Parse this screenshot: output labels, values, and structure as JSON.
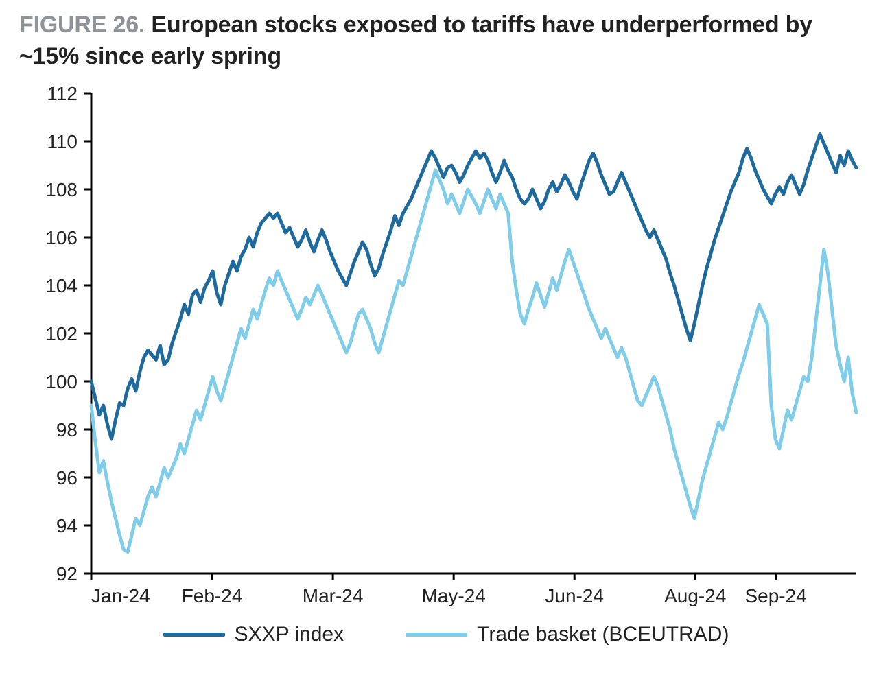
{
  "title": {
    "prefix": "FIGURE 26.",
    "text": "European stocks exposed to tariffs have  underperformed by ~15% since early spring"
  },
  "chart": {
    "type": "line",
    "background_color": "#ffffff",
    "axis_color": "#000000",
    "axis_line_width": 3,
    "series_line_width": 5,
    "tick_length": 10,
    "tick_font_size": 28,
    "legend_font_size": 30,
    "title_font_size": 34,
    "y_axis": {
      "min": 92,
      "max": 112,
      "step": 2,
      "ticks": [
        92,
        94,
        96,
        98,
        100,
        102,
        104,
        106,
        108,
        110,
        112
      ]
    },
    "x_axis": {
      "min": 0,
      "max": 190,
      "tick_positions": [
        0,
        30,
        60,
        90,
        120,
        150,
        170
      ],
      "tick_labels": [
        "Jan-24",
        "Feb-24",
        "Mar-24",
        "May-24",
        "Jun-24",
        "Aug-24",
        "Sep-24"
      ]
    },
    "legend": {
      "items": [
        {
          "label": "SXXP index",
          "color": "#1e6a9c"
        },
        {
          "label": "Trade basket (BCEUTRAD)",
          "color": "#7fcde8"
        }
      ]
    },
    "series": [
      {
        "name": "SXXP index",
        "color": "#1e6a9c",
        "data": [
          100.0,
          99.3,
          98.6,
          99.0,
          98.2,
          97.6,
          98.4,
          99.1,
          99.0,
          99.7,
          100.1,
          99.6,
          100.4,
          101.0,
          101.3,
          101.1,
          100.9,
          101.5,
          100.7,
          100.9,
          101.6,
          102.1,
          102.6,
          103.2,
          102.8,
          103.6,
          103.8,
          103.3,
          103.9,
          104.2,
          104.6,
          103.7,
          103.2,
          104.0,
          104.5,
          105.0,
          104.6,
          105.2,
          105.5,
          106.0,
          105.6,
          106.2,
          106.6,
          106.8,
          107.0,
          106.8,
          107.0,
          106.6,
          106.2,
          106.4,
          106.0,
          105.6,
          105.9,
          106.3,
          105.8,
          105.4,
          105.9,
          106.3,
          105.9,
          105.4,
          105.0,
          104.6,
          104.3,
          104.0,
          104.5,
          105.0,
          105.4,
          105.8,
          105.5,
          104.9,
          104.4,
          104.7,
          105.3,
          105.8,
          106.3,
          106.9,
          106.5,
          107.0,
          107.3,
          107.6,
          108.0,
          108.4,
          108.8,
          109.2,
          109.6,
          109.3,
          108.9,
          108.5,
          108.9,
          109.0,
          108.7,
          108.3,
          108.6,
          109.0,
          109.3,
          109.6,
          109.3,
          109.5,
          109.2,
          108.7,
          108.3,
          108.7,
          109.2,
          108.8,
          108.5,
          108.0,
          107.6,
          107.4,
          107.6,
          108.0,
          107.6,
          107.2,
          107.5,
          108.0,
          108.3,
          107.9,
          108.2,
          108.6,
          108.3,
          107.9,
          107.6,
          108.2,
          108.7,
          109.2,
          109.5,
          109.1,
          108.6,
          108.2,
          107.8,
          107.9,
          108.3,
          108.7,
          108.3,
          107.9,
          107.5,
          107.1,
          106.7,
          106.3,
          106.0,
          106.3,
          105.9,
          105.5,
          105.1,
          104.5,
          104.0,
          103.4,
          102.8,
          102.2,
          101.7,
          102.4,
          103.2,
          104.0,
          104.7,
          105.3,
          105.9,
          106.4,
          106.9,
          107.4,
          107.9,
          108.3,
          108.7,
          109.3,
          109.7,
          109.3,
          108.8,
          108.4,
          108.0,
          107.7,
          107.4,
          107.8,
          108.1,
          107.8,
          108.3,
          108.6,
          108.2,
          107.8,
          108.2,
          108.8,
          109.3,
          109.8,
          110.3,
          109.9,
          109.5,
          109.1,
          108.7,
          109.4,
          109.0,
          109.6,
          109.2,
          108.9
        ]
      },
      {
        "name": "Trade basket (BCEUTRAD)",
        "color": "#7fcde8",
        "data": [
          99.0,
          97.5,
          96.2,
          96.7,
          95.8,
          95.0,
          94.3,
          93.6,
          93.0,
          92.9,
          93.6,
          94.3,
          94.0,
          94.6,
          95.2,
          95.6,
          95.2,
          95.8,
          96.4,
          96.0,
          96.4,
          96.8,
          97.4,
          97.0,
          97.6,
          98.2,
          98.8,
          98.4,
          99.0,
          99.6,
          100.2,
          99.6,
          99.2,
          99.8,
          100.4,
          101.0,
          101.6,
          102.2,
          101.8,
          102.4,
          103.0,
          102.6,
          103.2,
          103.8,
          104.3,
          104.0,
          104.6,
          104.2,
          103.8,
          103.4,
          103.0,
          102.6,
          103.0,
          103.5,
          103.2,
          103.6,
          104.0,
          103.6,
          103.2,
          102.8,
          102.4,
          102.0,
          101.6,
          101.2,
          101.6,
          102.2,
          102.8,
          103.0,
          102.6,
          102.2,
          101.6,
          101.2,
          101.8,
          102.4,
          103.0,
          103.6,
          104.2,
          104.0,
          104.6,
          105.2,
          105.8,
          106.4,
          107.0,
          107.6,
          108.2,
          108.8,
          108.4,
          108.0,
          107.4,
          107.8,
          107.4,
          107.0,
          107.5,
          108.0,
          107.7,
          107.4,
          107.0,
          107.5,
          108.0,
          107.6,
          107.2,
          107.8,
          107.4,
          107.0,
          105.0,
          103.8,
          102.8,
          102.4,
          103.0,
          103.5,
          104.1,
          103.6,
          103.1,
          103.7,
          104.3,
          103.8,
          104.4,
          105.0,
          105.5,
          105.0,
          104.5,
          104.0,
          103.5,
          103.0,
          102.6,
          102.2,
          101.8,
          102.2,
          101.8,
          101.4,
          101.0,
          101.4,
          101.0,
          100.4,
          99.8,
          99.2,
          99.0,
          99.4,
          99.8,
          100.2,
          99.8,
          99.2,
          98.6,
          98.0,
          97.2,
          96.6,
          96.0,
          95.4,
          94.8,
          94.3,
          95.1,
          95.9,
          96.5,
          97.1,
          97.7,
          98.3,
          98.0,
          98.5,
          99.1,
          99.7,
          100.3,
          100.8,
          101.4,
          102.0,
          102.6,
          103.2,
          102.8,
          102.4,
          99.0,
          97.6,
          97.2,
          98.0,
          98.8,
          98.4,
          99.0,
          99.6,
          100.2,
          100.0,
          101.0,
          102.5,
          104.0,
          105.5,
          104.5,
          103.0,
          101.5,
          100.7,
          100.0,
          101.0,
          99.5,
          98.7
        ]
      }
    ]
  }
}
